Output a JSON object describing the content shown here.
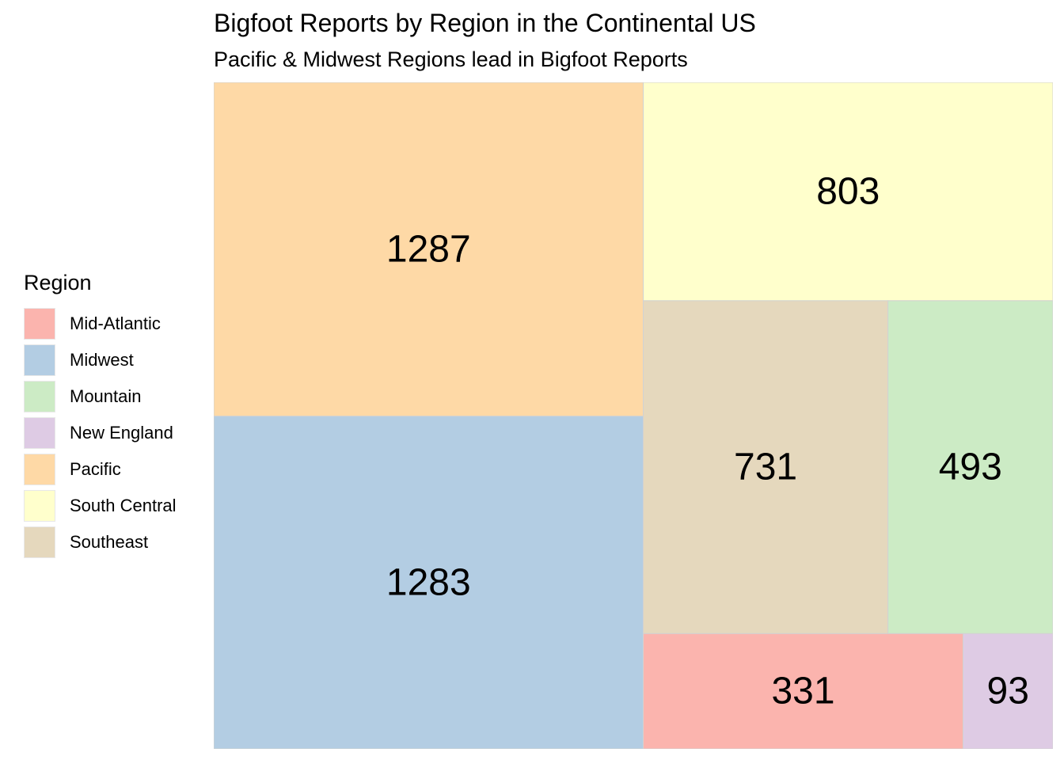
{
  "chart_data": {
    "type": "treemap",
    "title": "Bigfoot Reports by Region in the Continental US",
    "subtitle": "Pacific & Midwest Regions lead in Bigfoot Reports",
    "legend": {
      "title": "Region",
      "placement": "left",
      "entries": [
        {
          "name": "Mid-Atlantic",
          "color": "#fbb4ae"
        },
        {
          "name": "Midwest",
          "color": "#b3cde3"
        },
        {
          "name": "Mountain",
          "color": "#ccebc5"
        },
        {
          "name": "New England",
          "color": "#decbe4"
        },
        {
          "name": "Pacific",
          "color": "#fed9a6"
        },
        {
          "name": "South Central",
          "color": "#ffffcc"
        },
        {
          "name": "Southeast",
          "color": "#e5d8bd"
        }
      ]
    },
    "tiles": [
      {
        "region": "Pacific",
        "value": 1287
      },
      {
        "region": "Midwest",
        "value": 1283
      },
      {
        "region": "South Central",
        "value": 803
      },
      {
        "region": "Southeast",
        "value": 731
      },
      {
        "region": "Mountain",
        "value": 493
      },
      {
        "region": "Mid-Atlantic",
        "value": 331
      },
      {
        "region": "New England",
        "value": 93
      }
    ]
  }
}
